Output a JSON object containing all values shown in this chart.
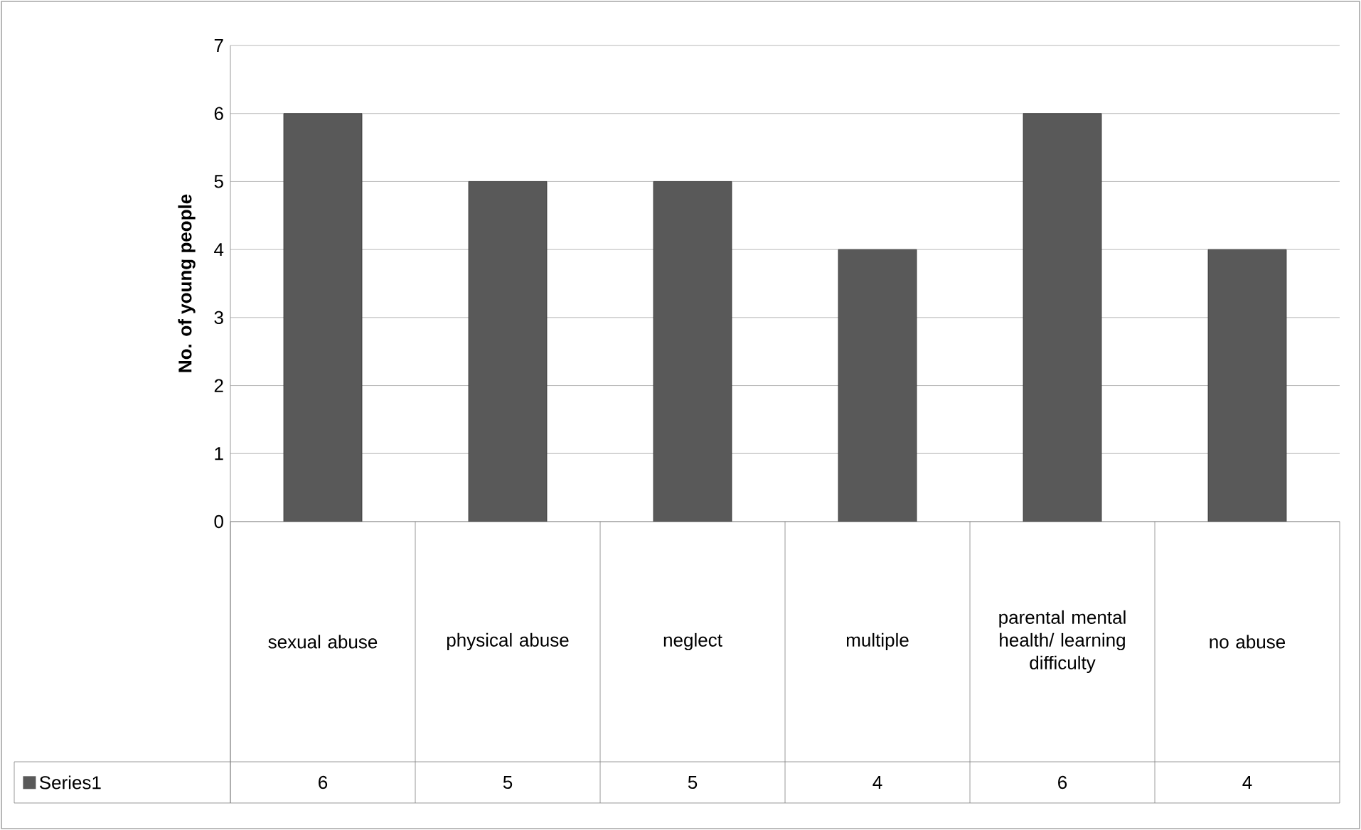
{
  "chart_data": {
    "type": "bar",
    "ylabel": "No. of young people",
    "categories": [
      "sexual abuse",
      "physical abuse",
      "neglect",
      "multiple",
      "parental mental health/ learning difficulty",
      "no abuse"
    ],
    "series": [
      {
        "name": "Series1",
        "color": "#595959",
        "values": [
          6,
          5,
          5,
          4,
          6,
          4
        ]
      }
    ],
    "ylim": [
      0,
      7
    ],
    "yticks": [
      0,
      1,
      2,
      3,
      4,
      5,
      6,
      7
    ],
    "grid": "y",
    "legend": "bottom",
    "data_labels": true
  }
}
